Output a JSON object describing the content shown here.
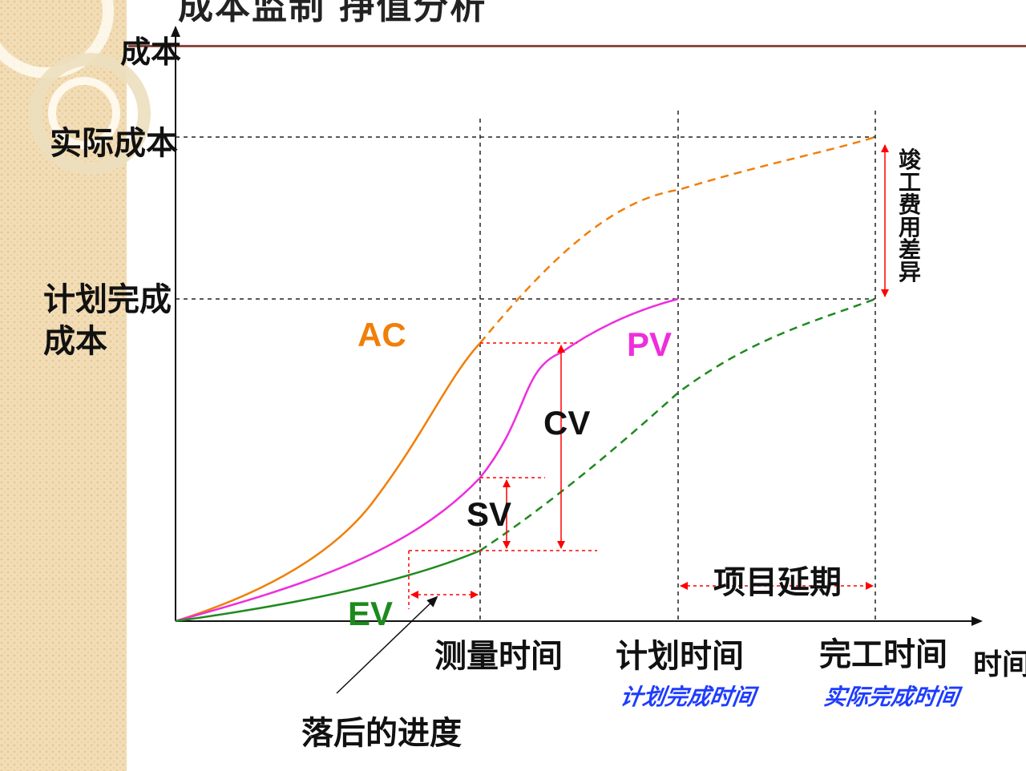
{
  "title": "成本监制 挣值分析",
  "axes": {
    "y_title": "成本",
    "x_title": "时间",
    "y_actual_cost": "实际成本",
    "y_planned_cost": "计划完成成本"
  },
  "curves": {
    "ac": "AC",
    "pv": "PV",
    "ev": "EV"
  },
  "variances": {
    "cv": "CV",
    "sv": "SV",
    "final_cost_variance": "竣工费用差异",
    "project_delay": "项目延期",
    "schedule_lag": "落后的进度"
  },
  "x_markers": {
    "measure_time": "测量时间",
    "planned_time": "计划时间",
    "completion_time": "完工时间"
  },
  "handwritten": {
    "planned_completion": "计划完成时间",
    "actual_completion": "实际完成时间"
  },
  "colors": {
    "ac": "#f07f09",
    "pv": "#ee2edc",
    "ev": "#1e8a1e",
    "annotation": "#ff0000",
    "handwriting": "#1e3cff",
    "title_rule": "#8b4a3f"
  }
}
